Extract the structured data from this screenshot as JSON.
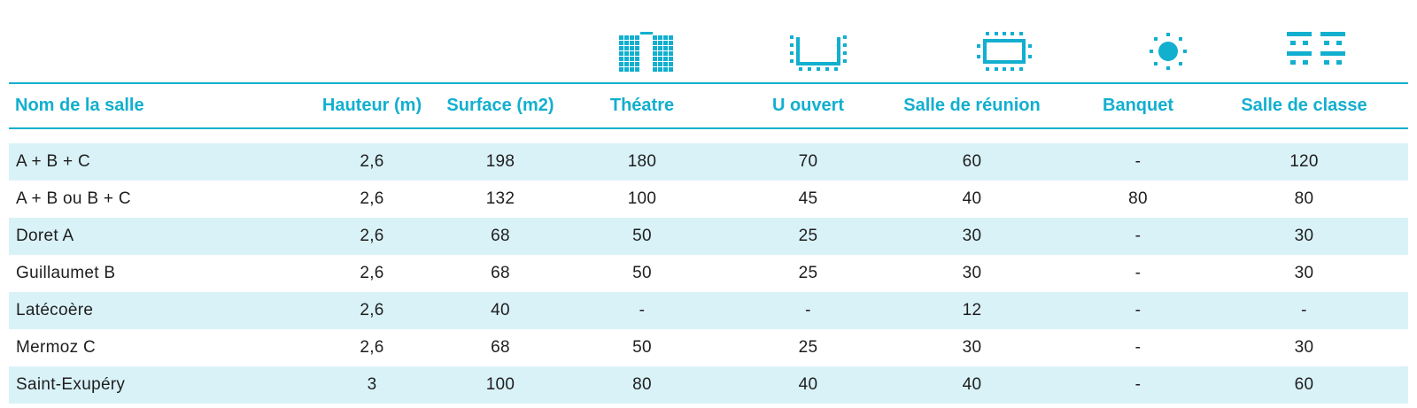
{
  "icons": {
    "color": "#12afcf",
    "theatre": "theatre-layout-icon",
    "u_open": "u-shape-layout-icon",
    "meeting": "boardroom-layout-icon",
    "banquet": "banquet-layout-icon",
    "classroom": "classroom-layout-icon"
  },
  "header": {
    "name": "Nom de la salle",
    "height": "Hauteur (m)",
    "surface": "Surface (m2)",
    "theatre": "Théatre",
    "u_open": "U ouvert",
    "meeting": "Salle de réunion",
    "banquet": "Banquet",
    "classroom": "Salle de classe"
  },
  "rows": [
    {
      "name": "A + B + C",
      "height": "2,6",
      "surface": "198",
      "theatre": "180",
      "u_open": "70",
      "meeting": "60",
      "banquet": "-",
      "classroom": "120"
    },
    {
      "name": "A + B ou B + C",
      "height": "2,6",
      "surface": "132",
      "theatre": "100",
      "u_open": "45",
      "meeting": "40",
      "banquet": "80",
      "classroom": "80"
    },
    {
      "name": "Doret A",
      "height": "2,6",
      "surface": "68",
      "theatre": "50",
      "u_open": "25",
      "meeting": "30",
      "banquet": "-",
      "classroom": "30"
    },
    {
      "name": "Guillaumet B",
      "height": "2,6",
      "surface": "68",
      "theatre": "50",
      "u_open": "25",
      "meeting": "30",
      "banquet": "-",
      "classroom": "30"
    },
    {
      "name": "Latécoère",
      "height": "2,6",
      "surface": "40",
      "theatre": "-",
      "u_open": "-",
      "meeting": "12",
      "banquet": "-",
      "classroom": "-"
    },
    {
      "name": "Mermoz C",
      "height": "2,6",
      "surface": "68",
      "theatre": "50",
      "u_open": "25",
      "meeting": "30",
      "banquet": "-",
      "classroom": "30"
    },
    {
      "name": "Saint-Exupéry",
      "height": "3",
      "surface": "100",
      "theatre": "80",
      "u_open": "40",
      "meeting": "40",
      "banquet": "-",
      "classroom": "60"
    }
  ]
}
